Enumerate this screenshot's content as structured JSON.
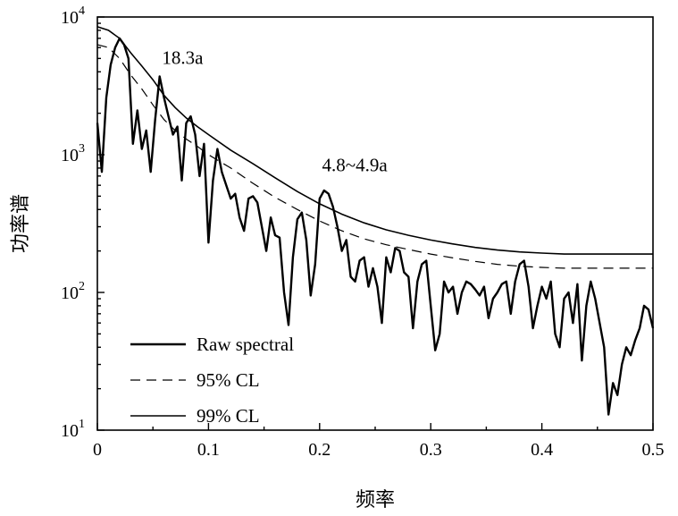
{
  "chart_data": {
    "type": "line",
    "xlabel": "频率",
    "ylabel": "功率谱",
    "xlim": [
      0,
      0.5
    ],
    "ylim": [
      10,
      10000
    ],
    "yscale": "log",
    "grid": false,
    "legend_position": "bottom-left",
    "x_ticks": [
      "0",
      "0.1",
      "0.2",
      "0.3",
      "0.4",
      "0.5"
    ],
    "y_ticks": [
      {
        "base": "10",
        "exp": "1",
        "value": 10
      },
      {
        "base": "10",
        "exp": "2",
        "value": 100
      },
      {
        "base": "10",
        "exp": "3",
        "value": 1000
      },
      {
        "base": "10",
        "exp": "4",
        "value": 10000
      }
    ],
    "annotations": [
      {
        "text": "18.3a",
        "x": 0.055,
        "y": 3800
      },
      {
        "text": "4.8~4.9a",
        "x": 0.207,
        "y": 580
      }
    ],
    "series": [
      {
        "name": "Raw spectral",
        "style": "solid-thick",
        "x": [
          0,
          0.004,
          0.008,
          0.012,
          0.016,
          0.02,
          0.024,
          0.028,
          0.032,
          0.036,
          0.04,
          0.044,
          0.048,
          0.052,
          0.056,
          0.06,
          0.064,
          0.068,
          0.072,
          0.076,
          0.08,
          0.084,
          0.088,
          0.092,
          0.096,
          0.1,
          0.104,
          0.108,
          0.112,
          0.116,
          0.12,
          0.124,
          0.128,
          0.132,
          0.136,
          0.14,
          0.144,
          0.148,
          0.152,
          0.156,
          0.16,
          0.164,
          0.168,
          0.172,
          0.176,
          0.18,
          0.184,
          0.188,
          0.192,
          0.196,
          0.2,
          0.204,
          0.208,
          0.212,
          0.216,
          0.22,
          0.224,
          0.228,
          0.232,
          0.236,
          0.24,
          0.244,
          0.248,
          0.252,
          0.256,
          0.26,
          0.264,
          0.268,
          0.272,
          0.276,
          0.28,
          0.284,
          0.288,
          0.292,
          0.296,
          0.3,
          0.304,
          0.308,
          0.312,
          0.316,
          0.32,
          0.324,
          0.328,
          0.332,
          0.336,
          0.34,
          0.344,
          0.348,
          0.352,
          0.356,
          0.36,
          0.364,
          0.368,
          0.372,
          0.376,
          0.38,
          0.384,
          0.388,
          0.392,
          0.396,
          0.4,
          0.404,
          0.408,
          0.412,
          0.416,
          0.42,
          0.424,
          0.428,
          0.432,
          0.436,
          0.44,
          0.444,
          0.448,
          0.452,
          0.456,
          0.46,
          0.464,
          0.468,
          0.472,
          0.476,
          0.48,
          0.484,
          0.488,
          0.492,
          0.496,
          0.5
        ],
        "y": [
          1700,
          750,
          2600,
          4500,
          6000,
          7000,
          6300,
          5000,
          1200,
          2100,
          1100,
          1500,
          750,
          1800,
          3700,
          2600,
          1900,
          1400,
          1600,
          650,
          1700,
          1900,
          1400,
          700,
          1200,
          230,
          650,
          1100,
          750,
          600,
          480,
          520,
          350,
          280,
          480,
          500,
          450,
          300,
          200,
          350,
          260,
          250,
          100,
          58,
          180,
          340,
          380,
          240,
          95,
          160,
          480,
          550,
          520,
          420,
          300,
          200,
          240,
          130,
          120,
          170,
          180,
          110,
          150,
          110,
          60,
          180,
          140,
          210,
          200,
          140,
          130,
          55,
          120,
          160,
          170,
          80,
          38,
          50,
          120,
          100,
          110,
          70,
          100,
          120,
          115,
          105,
          95,
          110,
          65,
          90,
          100,
          115,
          120,
          70,
          120,
          160,
          170,
          110,
          55,
          80,
          110,
          90,
          120,
          50,
          40,
          90,
          100,
          60,
          115,
          32,
          80,
          120,
          90,
          60,
          40,
          13,
          22,
          18,
          30,
          40,
          35,
          45,
          55,
          80,
          75,
          55
        ],
        "stroke": "#000000"
      },
      {
        "name": "95% CL",
        "style": "dashed",
        "x": [
          0,
          0.01,
          0.02,
          0.03,
          0.04,
          0.05,
          0.06,
          0.07,
          0.08,
          0.09,
          0.1,
          0.12,
          0.14,
          0.16,
          0.18,
          0.2,
          0.22,
          0.24,
          0.26,
          0.28,
          0.3,
          0.32,
          0.34,
          0.36,
          0.38,
          0.4,
          0.42,
          0.44,
          0.46,
          0.48,
          0.5
        ],
        "y": [
          6300,
          6000,
          5000,
          3800,
          3000,
          2300,
          1800,
          1500,
          1300,
          1150,
          1000,
          800,
          620,
          490,
          400,
          330,
          280,
          245,
          222,
          205,
          190,
          178,
          168,
          160,
          155,
          152,
          150,
          150,
          150,
          150,
          150
        ],
        "stroke": "#000000"
      },
      {
        "name": "99% CL",
        "style": "solid-thin",
        "x": [
          0,
          0.01,
          0.02,
          0.03,
          0.04,
          0.05,
          0.06,
          0.07,
          0.08,
          0.09,
          0.1,
          0.12,
          0.14,
          0.16,
          0.18,
          0.2,
          0.22,
          0.24,
          0.26,
          0.28,
          0.3,
          0.32,
          0.34,
          0.36,
          0.38,
          0.4,
          0.42,
          0.44,
          0.46,
          0.48,
          0.5
        ],
        "y": [
          8500,
          8000,
          7000,
          5500,
          4400,
          3500,
          2700,
          2200,
          1850,
          1600,
          1400,
          1080,
          860,
          680,
          540,
          440,
          370,
          320,
          285,
          260,
          240,
          225,
          212,
          203,
          197,
          193,
          190,
          190,
          190,
          190,
          190
        ],
        "stroke": "#000000"
      }
    ]
  }
}
